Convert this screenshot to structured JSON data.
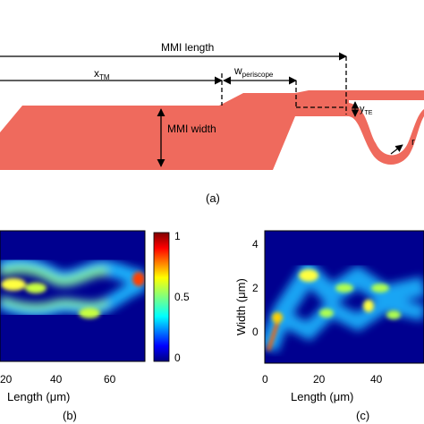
{
  "schematic": {
    "mmi_length": "MMI length",
    "x_tm_main": "x",
    "x_tm_sub": "TM",
    "w_periscope_main": "w",
    "w_periscope_sub": "periscope",
    "mmi_width": "MMI width",
    "y_te_main": "y",
    "y_te_sub": "TE",
    "radius": "r",
    "panel_label": "(a)",
    "waveguide_color": "#ef6a5d"
  },
  "panels": {
    "b": {
      "panel_label": "(b)",
      "xlabel": "Length (μm)",
      "x_ticks": [
        "20",
        "40",
        "60"
      ],
      "colorbar_ticks": [
        "1",
        "0.5",
        "0"
      ],
      "colormap": "jet"
    },
    "c": {
      "panel_label": "(c)",
      "xlabel": "Length (μm)",
      "ylabel": "Width (μm)",
      "x_ticks": [
        "0",
        "20",
        "40"
      ],
      "y_ticks": [
        "4",
        "2",
        "0"
      ],
      "colormap": "jet"
    }
  }
}
